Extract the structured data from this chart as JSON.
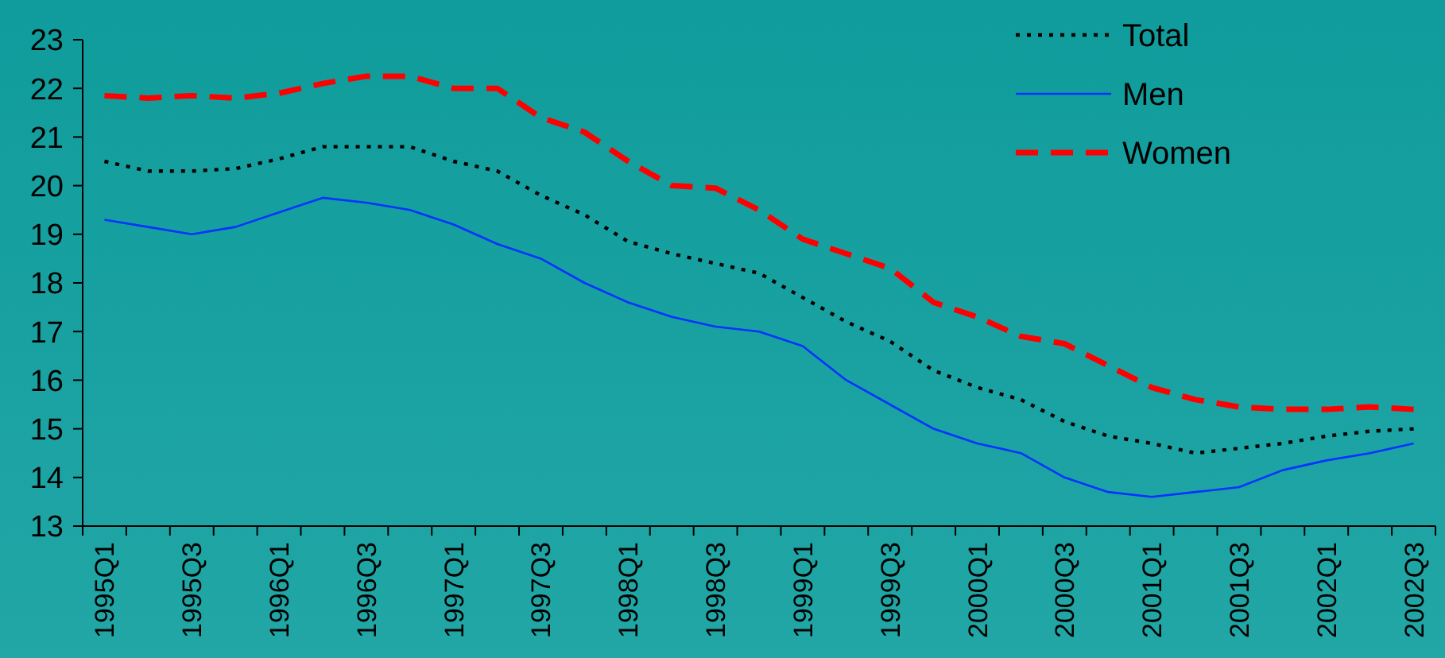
{
  "chart_data": {
    "type": "line",
    "categories": [
      "1995Q1",
      null,
      "1995Q3",
      null,
      "1996Q1",
      null,
      "1996Q3",
      null,
      "1997Q1",
      null,
      "1997Q3",
      null,
      "1998Q1",
      null,
      "1998Q3",
      null,
      "1999Q1",
      null,
      "1999Q3",
      null,
      "2000Q1",
      null,
      "2000Q3",
      null,
      "2001Q1",
      null,
      "2001Q3",
      null,
      "2002Q1",
      null,
      "2002Q3"
    ],
    "ylim": [
      13,
      23
    ],
    "yticks": [
      13,
      14,
      15,
      16,
      17,
      18,
      19,
      20,
      21,
      22,
      23
    ],
    "grid": false,
    "legend": "top right",
    "series": [
      {
        "name": "Total",
        "color": "#000000",
        "line_style": "dotted",
        "values": [
          20.5,
          20.3,
          20.3,
          20.35,
          20.55,
          20.8,
          20.8,
          20.8,
          20.5,
          20.3,
          19.8,
          19.4,
          18.85,
          18.6,
          18.4,
          18.2,
          17.7,
          17.2,
          16.8,
          16.2,
          15.85,
          15.6,
          15.15,
          14.85,
          14.7,
          14.5,
          14.6,
          14.7,
          14.85,
          14.95,
          15.0
        ]
      },
      {
        "name": "Men",
        "color": "#0033ff",
        "line_style": "solid",
        "values": [
          19.3,
          19.15,
          19.0,
          19.15,
          19.45,
          19.75,
          19.65,
          19.5,
          19.2,
          18.8,
          18.5,
          18.0,
          17.6,
          17.3,
          17.1,
          17.0,
          16.7,
          16.0,
          15.5,
          15.0,
          14.7,
          14.5,
          14.0,
          13.7,
          13.6,
          13.7,
          13.8,
          14.15,
          14.35,
          14.5,
          14.7
        ]
      },
      {
        "name": "Women",
        "color": "#ff0000",
        "line_style": "dashed",
        "values": [
          21.85,
          21.8,
          21.85,
          21.8,
          21.9,
          22.1,
          22.25,
          22.25,
          22.0,
          22.0,
          21.4,
          21.1,
          20.5,
          20.0,
          19.95,
          19.5,
          18.9,
          18.6,
          18.3,
          17.6,
          17.3,
          16.9,
          16.75,
          16.3,
          15.85,
          15.6,
          15.45,
          15.4,
          15.4,
          15.45,
          15.4
        ]
      }
    ]
  }
}
